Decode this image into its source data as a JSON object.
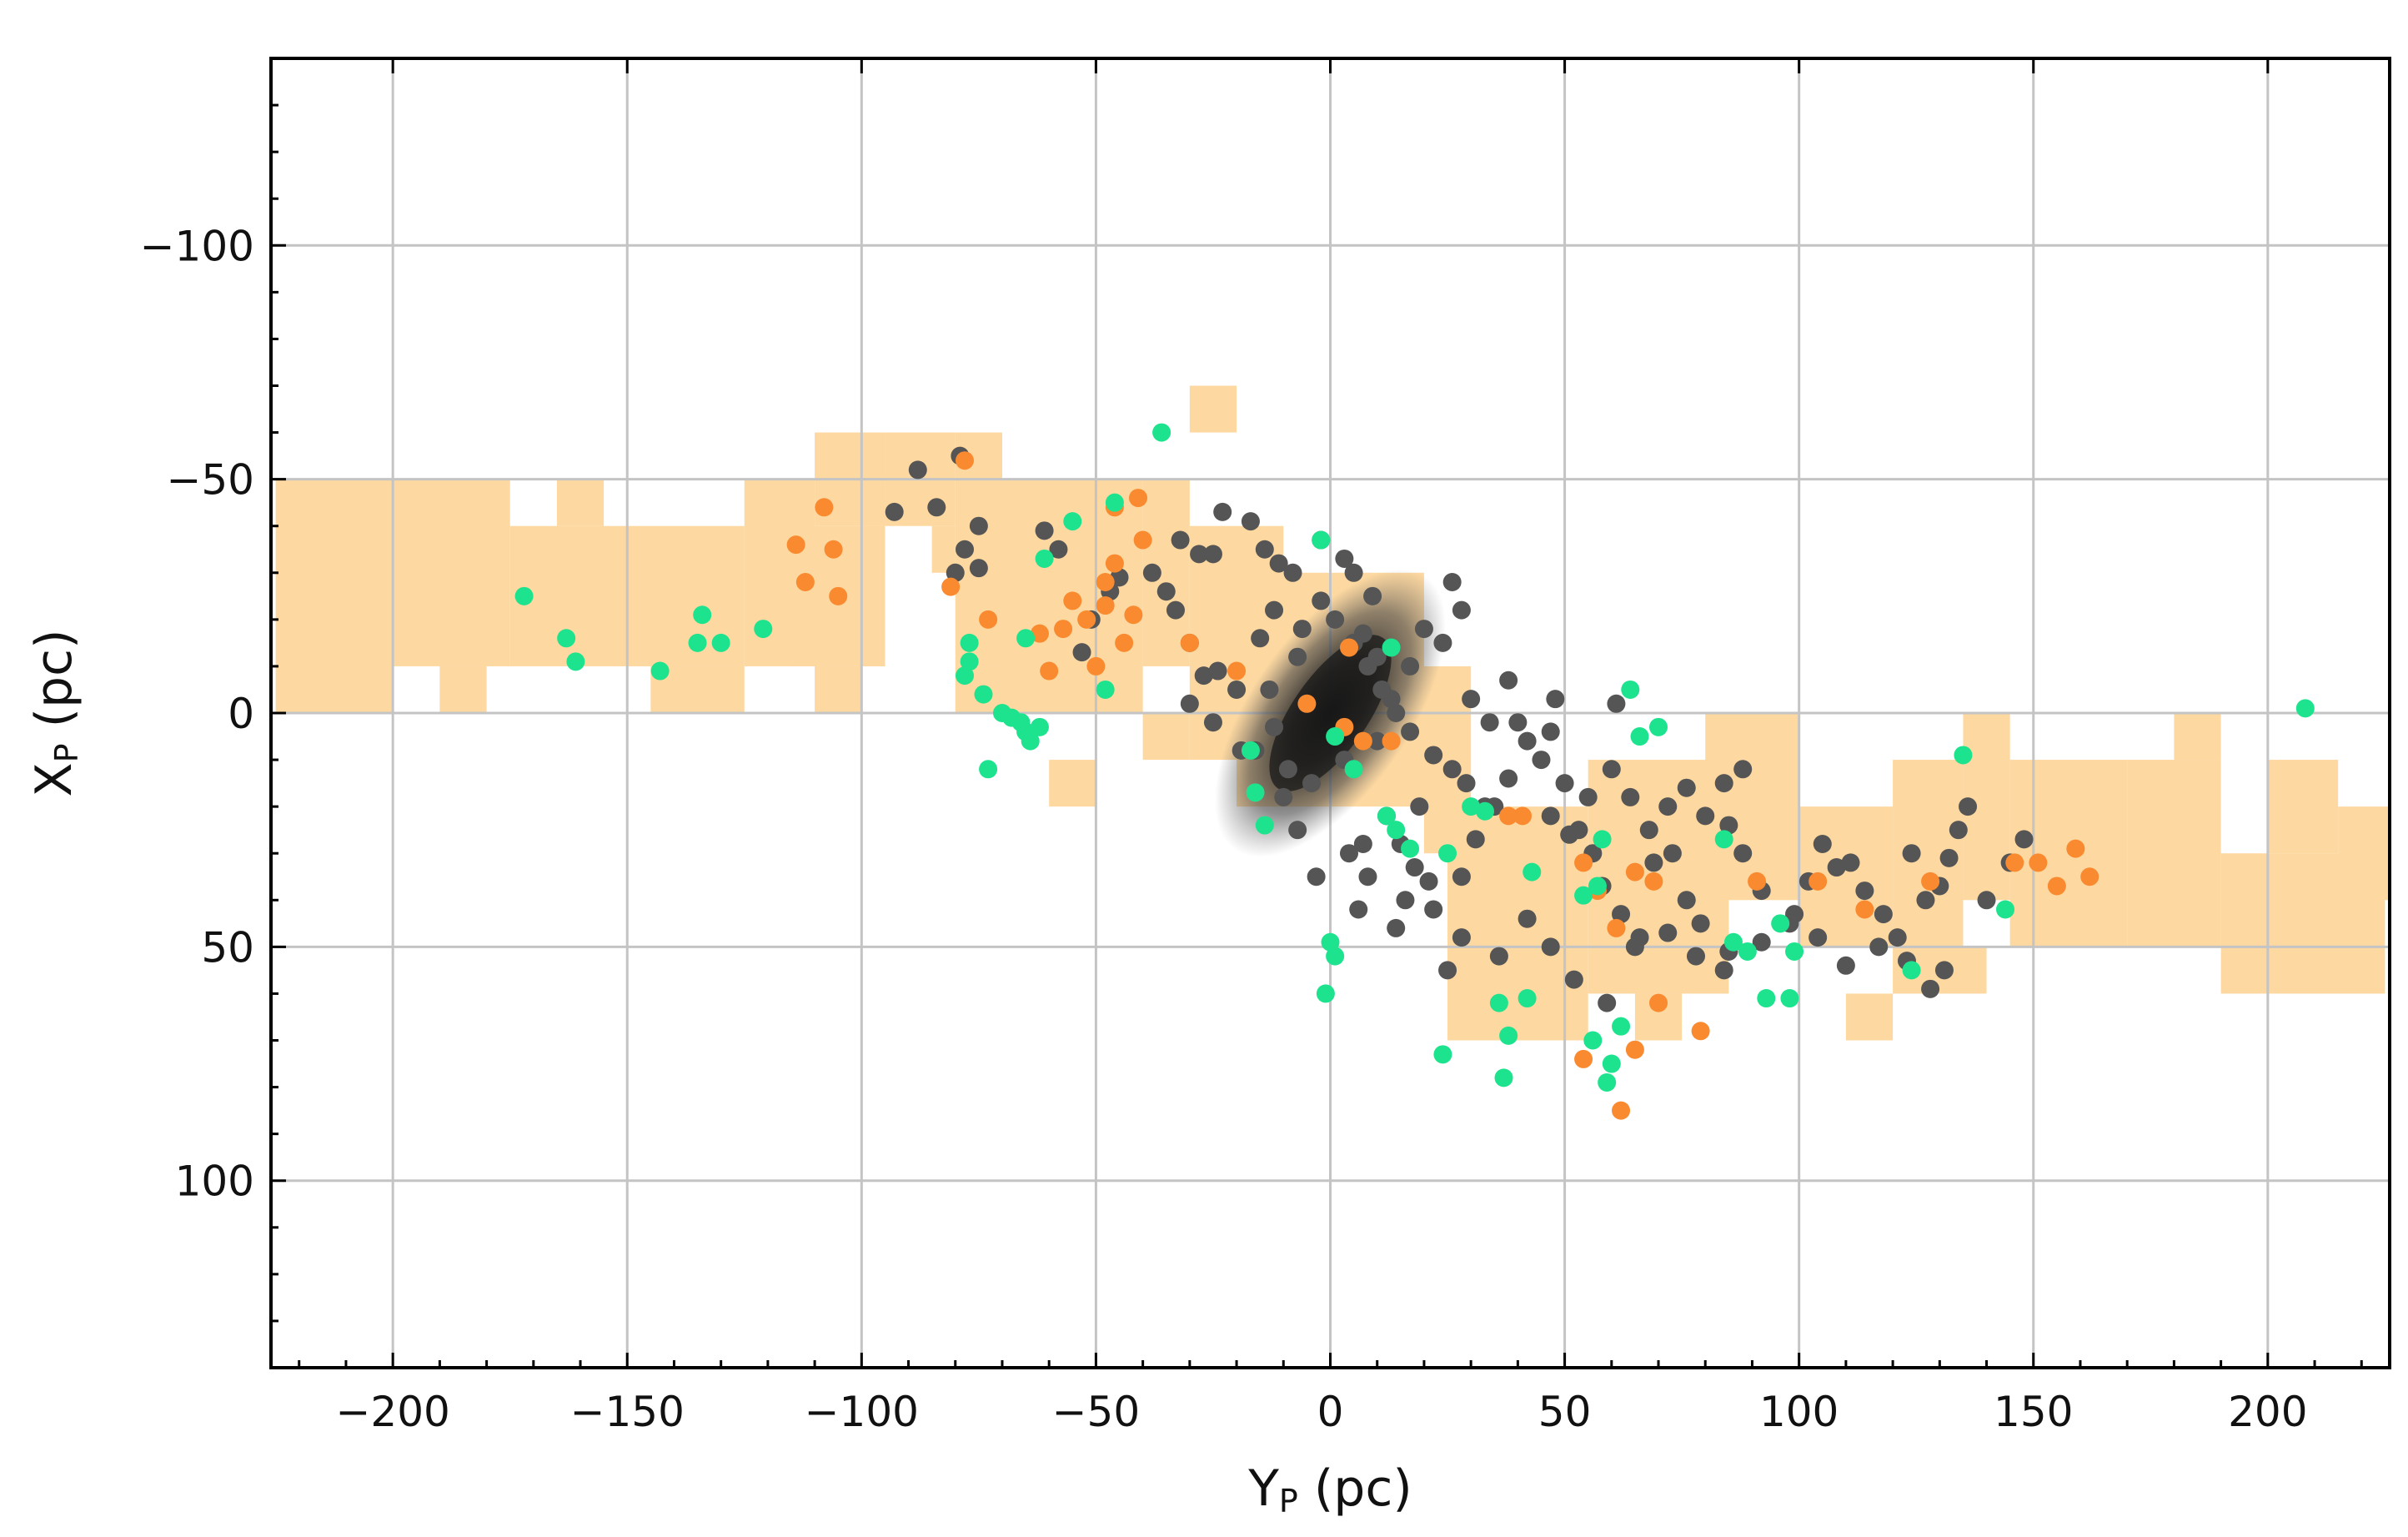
{
  "chart_data": {
    "type": "scatter",
    "xlabel": "Y",
    "xlabel_sub": "P",
    "xlabel_unit": " (pc)",
    "ylabel": "X",
    "ylabel_sub": "P",
    "ylabel_unit": " (pc)",
    "xlim": [
      -226,
      226
    ],
    "ylim": [
      140,
      -140
    ],
    "y_inverted": true,
    "grid": true,
    "legend": "none",
    "x_ticks": [
      -200,
      -150,
      -100,
      -50,
      0,
      50,
      100,
      150,
      200
    ],
    "x_tick_labels": [
      "−200",
      "−150",
      "−100",
      "−50",
      "0",
      "50",
      "100",
      "150",
      "200"
    ],
    "y_ticks": [
      -100,
      -50,
      0,
      50,
      100
    ],
    "y_tick_labels": [
      "−100",
      "−50",
      "0",
      "50",
      "100"
    ],
    "colors": {
      "region": "#fdd8a0",
      "dark_members": "#555555",
      "core_density": "#222222",
      "orange_members": "#f98a30",
      "green_members": "#1ee38e"
    },
    "shaded_region_cells": {
      "cell_width_pc": 10,
      "cell_height_pc": 10,
      "cells": [
        [
          -225,
          -50,
          -200,
          0
        ],
        [
          -200,
          -50,
          -175,
          -10
        ],
        [
          -175,
          -40,
          -125,
          -10
        ],
        [
          -165,
          -50,
          -155,
          -40
        ],
        [
          -125,
          -50,
          -110,
          -10
        ],
        [
          -110,
          -60,
          -95,
          -40
        ],
        [
          -115,
          -40,
          -95,
          -10
        ],
        [
          -95,
          -60,
          -80,
          -40
        ],
        [
          -100,
          -40,
          -95,
          -10
        ],
        [
          -85,
          -40,
          -80,
          -30
        ],
        [
          -80,
          -60,
          -70,
          -10
        ],
        [
          -70,
          -50,
          -40,
          0
        ],
        [
          -40,
          -50,
          -30,
          -10
        ],
        [
          -30,
          -70,
          -20,
          -60
        ],
        [
          -30,
          -40,
          -10,
          10
        ],
        [
          -20,
          -30,
          20,
          20
        ],
        [
          20,
          -10,
          30,
          30
        ],
        [
          25,
          20,
          55,
          70
        ],
        [
          55,
          10,
          85,
          60
        ],
        [
          65,
          60,
          75,
          70
        ],
        [
          80,
          0,
          100,
          40
        ],
        [
          100,
          20,
          120,
          50
        ],
        [
          110,
          60,
          120,
          70
        ],
        [
          120,
          10,
          135,
          50
        ],
        [
          120,
          50,
          140,
          60
        ],
        [
          135,
          0,
          145,
          40
        ],
        [
          145,
          10,
          170,
          50
        ],
        [
          170,
          10,
          190,
          50
        ],
        [
          180,
          0,
          190,
          10
        ],
        [
          190,
          30,
          225,
          60
        ],
        [
          200,
          10,
          215,
          30
        ],
        [
          215,
          20,
          226,
          40
        ],
        [
          -210,
          -20,
          -200,
          0
        ],
        [
          -190,
          -10,
          -180,
          0
        ],
        [
          -145,
          -10,
          -125,
          0
        ],
        [
          -110,
          -10,
          -100,
          0
        ],
        [
          -80,
          -10,
          -70,
          0
        ],
        [
          -60,
          10,
          -50,
          20
        ],
        [
          -40,
          0,
          -30,
          10
        ]
      ]
    },
    "series": [
      {
        "name": "",
        "color_key": "dark_members",
        "points": [
          [
            -88,
            -52
          ],
          [
            -79,
            -55
          ],
          [
            -84,
            -44
          ],
          [
            -93,
            -43
          ],
          [
            -75,
            -40
          ],
          [
            -78,
            -35
          ],
          [
            -80,
            -30
          ],
          [
            -75,
            -31
          ],
          [
            -61,
            -39
          ],
          [
            -58,
            -35
          ],
          [
            -51,
            -20
          ],
          [
            -53,
            -13
          ],
          [
            -47,
            -26
          ],
          [
            -45,
            -29
          ],
          [
            -38,
            -30
          ],
          [
            -32,
            -37
          ],
          [
            -28,
            -34
          ],
          [
            -23,
            -43
          ],
          [
            -17,
            -41
          ],
          [
            -14,
            -35
          ],
          [
            -11,
            -32
          ],
          [
            -25,
            -34
          ],
          [
            -35,
            -26
          ],
          [
            -33,
            -22
          ],
          [
            -30,
            -15
          ],
          [
            -27,
            -8
          ],
          [
            -30,
            -2
          ],
          [
            -25,
            2
          ],
          [
            -20,
            -5
          ],
          [
            -16,
            8
          ],
          [
            -10,
            18
          ],
          [
            -7,
            25
          ],
          [
            -3,
            35
          ],
          [
            4,
            30
          ],
          [
            7,
            28
          ],
          [
            12,
            22
          ],
          [
            18,
            33
          ],
          [
            16,
            40
          ],
          [
            22,
            42
          ],
          [
            25,
            55
          ],
          [
            28,
            35
          ],
          [
            31,
            27
          ],
          [
            33,
            20
          ],
          [
            30,
            -3
          ],
          [
            34,
            2
          ],
          [
            38,
            -7
          ],
          [
            40,
            2
          ],
          [
            45,
            10
          ],
          [
            47,
            22
          ],
          [
            51,
            26
          ],
          [
            55,
            18
          ],
          [
            56,
            30
          ],
          [
            58,
            37
          ],
          [
            62,
            43
          ],
          [
            66,
            48
          ],
          [
            69,
            32
          ],
          [
            73,
            30
          ],
          [
            76,
            40
          ],
          [
            79,
            45
          ],
          [
            84,
            55
          ],
          [
            84,
            15
          ],
          [
            88,
            30
          ],
          [
            92,
            38
          ],
          [
            99,
            43
          ],
          [
            102,
            36
          ],
          [
            105,
            28
          ],
          [
            108,
            33
          ],
          [
            111,
            32
          ],
          [
            114,
            38
          ],
          [
            118,
            43
          ],
          [
            121,
            48
          ],
          [
            124,
            30
          ],
          [
            127,
            40
          ],
          [
            130,
            37
          ],
          [
            132,
            31
          ],
          [
            134,
            25
          ],
          [
            136,
            20
          ],
          [
            140,
            40
          ],
          [
            145,
            32
          ],
          [
            148,
            27
          ],
          [
            35,
            20
          ],
          [
            38,
            14
          ],
          [
            42,
            6
          ],
          [
            47,
            4
          ],
          [
            50,
            15
          ],
          [
            53,
            25
          ],
          [
            60,
            12
          ],
          [
            64,
            18
          ],
          [
            68,
            25
          ],
          [
            72,
            20
          ],
          [
            76,
            16
          ],
          [
            80,
            22
          ],
          [
            85,
            24
          ],
          [
            88,
            12
          ],
          [
            10,
            6
          ],
          [
            13,
            -3
          ],
          [
            17,
            -10
          ],
          [
            20,
            -18
          ],
          [
            9,
            -25
          ],
          [
            5,
            -30
          ],
          [
            3,
            -33
          ],
          [
            -2,
            -37
          ],
          [
            -8,
            -30
          ],
          [
            -12,
            -22
          ],
          [
            -15,
            -16
          ],
          [
            -6,
            -18
          ],
          [
            -2,
            -24
          ],
          [
            5,
            -15
          ],
          [
            8,
            -10
          ],
          [
            11,
            -5
          ],
          [
            14,
            0
          ],
          [
            17,
            4
          ],
          [
            22,
            9
          ],
          [
            26,
            12
          ],
          [
            29,
            15
          ],
          [
            19,
            20
          ],
          [
            15,
            28
          ],
          [
            8,
            35
          ],
          [
            6,
            42
          ],
          [
            14,
            46
          ],
          [
            21,
            36
          ],
          [
            28,
            48
          ],
          [
            36,
            52
          ],
          [
            42,
            44
          ],
          [
            47,
            50
          ],
          [
            52,
            57
          ],
          [
            59,
            62
          ],
          [
            65,
            50
          ],
          [
            72,
            47
          ],
          [
            78,
            52
          ],
          [
            85,
            51
          ],
          [
            92,
            49
          ],
          [
            98,
            45
          ],
          [
            104,
            48
          ],
          [
            110,
            54
          ],
          [
            117,
            50
          ],
          [
            123,
            53
          ],
          [
            128,
            59
          ],
          [
            131,
            55
          ],
          [
            61,
            -2
          ],
          [
            48,
            -3
          ],
          [
            24,
            -15
          ],
          [
            28,
            -22
          ],
          [
            26,
            -28
          ],
          [
            3,
            10
          ],
          [
            -4,
            15
          ],
          [
            -9,
            12
          ],
          [
            -12,
            3
          ],
          [
            -19,
            8
          ],
          [
            -24,
            -9
          ],
          [
            -13,
            -5
          ],
          [
            -7,
            -12
          ],
          [
            1,
            -20
          ],
          [
            7,
            -17
          ],
          [
            10,
            -12
          ]
        ]
      },
      {
        "name": "",
        "color_key": "orange_members",
        "points": [
          [
            -78,
            -54
          ],
          [
            -108,
            -44
          ],
          [
            -114,
            -36
          ],
          [
            -106,
            -35
          ],
          [
            -112,
            -28
          ],
          [
            -105,
            -25
          ],
          [
            -81,
            -27
          ],
          [
            -73,
            -20
          ],
          [
            -62,
            -17
          ],
          [
            -60,
            -9
          ],
          [
            -55,
            -24
          ],
          [
            -52,
            -20
          ],
          [
            -48,
            -28
          ],
          [
            -46,
            -32
          ],
          [
            -48,
            -23
          ],
          [
            -44,
            -15
          ],
          [
            -42,
            -21
          ],
          [
            -40,
            -37
          ],
          [
            -46,
            -44
          ],
          [
            -41,
            -46
          ],
          [
            -30,
            -15
          ],
          [
            -20,
            -9
          ],
          [
            -5,
            -2
          ],
          [
            3,
            3
          ],
          [
            4,
            -14
          ],
          [
            7,
            6
          ],
          [
            13,
            6
          ],
          [
            38,
            22
          ],
          [
            41,
            22
          ],
          [
            54,
            32
          ],
          [
            57,
            38
          ],
          [
            61,
            46
          ],
          [
            65,
            34
          ],
          [
            69,
            36
          ],
          [
            70,
            62
          ],
          [
            79,
            68
          ],
          [
            91,
            36
          ],
          [
            104,
            36
          ],
          [
            114,
            42
          ],
          [
            128,
            36
          ],
          [
            146,
            32
          ],
          [
            151,
            32
          ],
          [
            155,
            37
          ],
          [
            159,
            29
          ],
          [
            162,
            35
          ],
          [
            54,
            74
          ],
          [
            62,
            85
          ],
          [
            65,
            72
          ],
          [
            -50,
            -10
          ],
          [
            -57,
            -18
          ]
        ]
      },
      {
        "name": "",
        "color_key": "green_members",
        "points": [
          [
            -36,
            -60
          ],
          [
            -46,
            -45
          ],
          [
            -55,
            -41
          ],
          [
            -61,
            -33
          ],
          [
            -77,
            -15
          ],
          [
            -77,
            -11
          ],
          [
            -78,
            -8
          ],
          [
            -74,
            -4
          ],
          [
            -73,
            12
          ],
          [
            -70,
            0
          ],
          [
            -68,
            1
          ],
          [
            -66,
            2
          ],
          [
            -65,
            4
          ],
          [
            -64,
            6
          ],
          [
            -62,
            3
          ],
          [
            -65,
            -16
          ],
          [
            -48,
            -5
          ],
          [
            -172,
            -25
          ],
          [
            -163,
            -16
          ],
          [
            -161,
            -11
          ],
          [
            -143,
            -9
          ],
          [
            -134,
            -21
          ],
          [
            -135,
            -15
          ],
          [
            -130,
            -15
          ],
          [
            -121,
            -18
          ],
          [
            -2,
            -37
          ],
          [
            1,
            5
          ],
          [
            5,
            12
          ],
          [
            12,
            22
          ],
          [
            14,
            25
          ],
          [
            13,
            -14
          ],
          [
            17,
            29
          ],
          [
            25,
            30
          ],
          [
            30,
            20
          ],
          [
            33,
            21
          ],
          [
            -14,
            24
          ],
          [
            -16,
            17
          ],
          [
            -17,
            8
          ],
          [
            0,
            49
          ],
          [
            1,
            52
          ],
          [
            -1,
            60
          ],
          [
            24,
            73
          ],
          [
            36,
            62
          ],
          [
            37,
            78
          ],
          [
            38,
            69
          ],
          [
            42,
            61
          ],
          [
            43,
            34
          ],
          [
            54,
            39
          ],
          [
            56,
            70
          ],
          [
            57,
            37
          ],
          [
            58,
            27
          ],
          [
            59,
            79
          ],
          [
            60,
            75
          ],
          [
            62,
            67
          ],
          [
            64,
            -5
          ],
          [
            66,
            5
          ],
          [
            70,
            3
          ],
          [
            84,
            27
          ],
          [
            86,
            49
          ],
          [
            89,
            51
          ],
          [
            93,
            61
          ],
          [
            96,
            45
          ],
          [
            98,
            61
          ],
          [
            99,
            51
          ],
          [
            124,
            55
          ],
          [
            135,
            9
          ],
          [
            144,
            42
          ],
          [
            208,
            -1
          ]
        ]
      }
    ],
    "core_density_center": [
      0,
      0
    ]
  }
}
